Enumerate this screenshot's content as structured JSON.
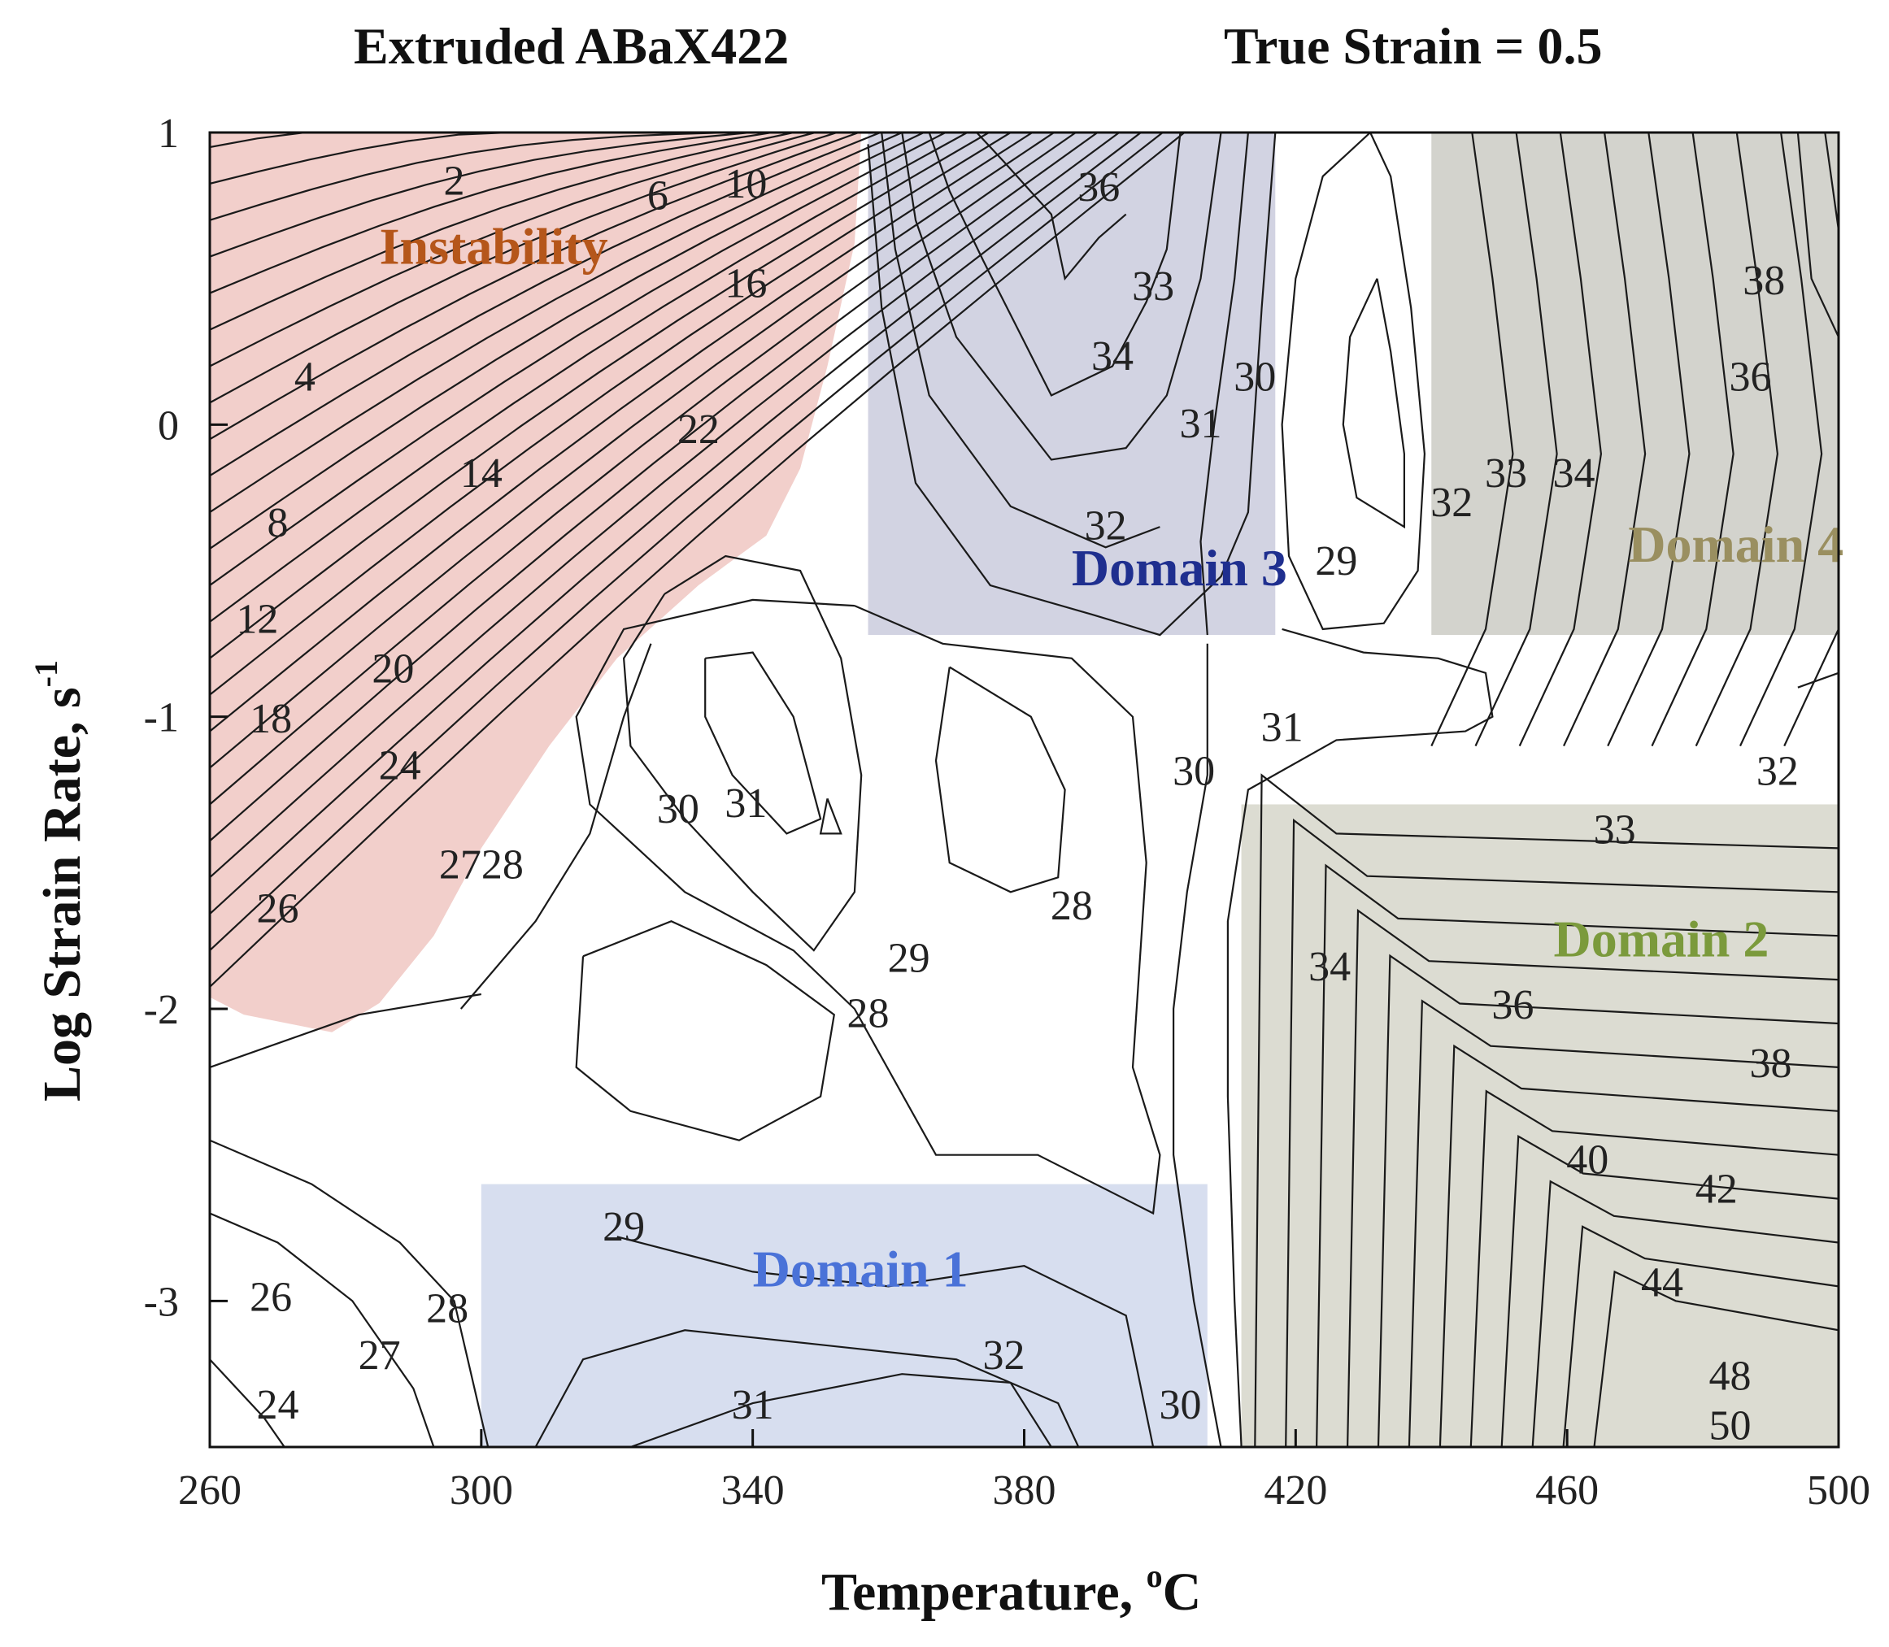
{
  "chart_data": {
    "type": "contour",
    "title": "Extruded ABaX422",
    "subtitle": "True Strain = 0.5",
    "xlabel": "Temperature, °C",
    "xlabel_main": "Temperature, ",
    "xlabel_sup": "o",
    "xlabel_unit": "C",
    "ylabel": "Log Strain Rate, s-1",
    "ylabel_main": "Log Strain Rate, s",
    "ylabel_sup": "-1",
    "xlim": [
      260,
      500
    ],
    "ylim": [
      -3.5,
      1
    ],
    "xticks": [
      260,
      300,
      340,
      380,
      420,
      460,
      500
    ],
    "yticks": [
      1,
      0,
      -1,
      -2,
      -3
    ],
    "xtick_labels": [
      "260",
      "300",
      "340",
      "380",
      "420",
      "460",
      "500"
    ],
    "ytick_labels": [
      "1",
      "0",
      "-1",
      "-2",
      "-3"
    ],
    "regions": [
      {
        "name": "Instability",
        "color": "#f2cfcb",
        "label_color": "#b5561a",
        "label_at": [
          285,
          0.55
        ]
      },
      {
        "name": "Domain 1",
        "color": "#d7deef",
        "label_color": "#4a72d8",
        "x": [
          300,
          407
        ],
        "y": [
          -3.5,
          -2.6
        ],
        "label_at": [
          340,
          -2.95
        ]
      },
      {
        "name": "Domain 2",
        "color": "#dcdcd2",
        "label_color": "#7b9a3c",
        "x": [
          412,
          500
        ],
        "y": [
          -3.5,
          -1.3
        ],
        "label_at": [
          458,
          -1.82
        ]
      },
      {
        "name": "Domain 3",
        "color": "#d2d3e2",
        "label_color": "#1f2f8f",
        "x": [
          357,
          417
        ],
        "y": [
          -0.72,
          1
        ],
        "label_at": [
          387,
          -0.55
        ]
      },
      {
        "name": "Domain 4",
        "color": "#d3d3cd",
        "label_color": "#9a8f60",
        "x": [
          440,
          500
        ],
        "y": [
          -0.72,
          1
        ],
        "label_at": [
          469,
          -0.47
        ]
      }
    ],
    "contour_labels": [
      {
        "text": "2",
        "x": 296,
        "y": 0.82
      },
      {
        "text": "6",
        "x": 326,
        "y": 0.77
      },
      {
        "text": "10",
        "x": 339,
        "y": 0.81
      },
      {
        "text": "16",
        "x": 339,
        "y": 0.47
      },
      {
        "text": "4",
        "x": 274,
        "y": 0.15
      },
      {
        "text": "22",
        "x": 332,
        "y": -0.03
      },
      {
        "text": "14",
        "x": 300,
        "y": -0.18
      },
      {
        "text": "8",
        "x": 270,
        "y": -0.35
      },
      {
        "text": "12",
        "x": 267,
        "y": -0.68
      },
      {
        "text": "20",
        "x": 287,
        "y": -0.85
      },
      {
        "text": "18",
        "x": 269,
        "y": -1.02
      },
      {
        "text": "24",
        "x": 288,
        "y": -1.18
      },
      {
        "text": "2728",
        "x": 300,
        "y": -1.52
      },
      {
        "text": "26",
        "x": 270,
        "y": -1.67
      },
      {
        "text": "36",
        "x": 391,
        "y": 0.8
      },
      {
        "text": "33",
        "x": 399,
        "y": 0.46
      },
      {
        "text": "34",
        "x": 393,
        "y": 0.22
      },
      {
        "text": "30",
        "x": 414,
        "y": 0.15
      },
      {
        "text": "31",
        "x": 406,
        "y": -0.01
      },
      {
        "text": "32",
        "x": 392,
        "y": -0.36
      },
      {
        "text": "29",
        "x": 426,
        "y": -0.48
      },
      {
        "text": "38",
        "x": 489,
        "y": 0.48
      },
      {
        "text": "36",
        "x": 487,
        "y": 0.15
      },
      {
        "text": "33",
        "x": 451,
        "y": -0.18
      },
      {
        "text": "34",
        "x": 461,
        "y": -0.18
      },
      {
        "text": "32",
        "x": 443,
        "y": -0.28
      },
      {
        "text": "31",
        "x": 418,
        "y": -1.05
      },
      {
        "text": "30",
        "x": 405,
        "y": -1.2
      },
      {
        "text": "30",
        "x": 329,
        "y": -1.33
      },
      {
        "text": "31",
        "x": 339,
        "y": -1.31
      },
      {
        "text": "28",
        "x": 387,
        "y": -1.66
      },
      {
        "text": "29",
        "x": 363,
        "y": -1.84
      },
      {
        "text": "28",
        "x": 357,
        "y": -2.03
      },
      {
        "text": "32",
        "x": 491,
        "y": -1.2
      },
      {
        "text": "33",
        "x": 467,
        "y": -1.4
      },
      {
        "text": "34",
        "x": 425,
        "y": -1.87
      },
      {
        "text": "36",
        "x": 452,
        "y": -2.0
      },
      {
        "text": "38",
        "x": 490,
        "y": -2.2
      },
      {
        "text": "40",
        "x": 463,
        "y": -2.53
      },
      {
        "text": "42",
        "x": 482,
        "y": -2.63
      },
      {
        "text": "44",
        "x": 474,
        "y": -2.95
      },
      {
        "text": "48",
        "x": 484,
        "y": -3.27
      },
      {
        "text": "50",
        "x": 484,
        "y": -3.44
      },
      {
        "text": "29",
        "x": 321,
        "y": -2.76
      },
      {
        "text": "26",
        "x": 269,
        "y": -3.0
      },
      {
        "text": "28",
        "x": 295,
        "y": -3.04
      },
      {
        "text": "27",
        "x": 285,
        "y": -3.2
      },
      {
        "text": "24",
        "x": 270,
        "y": -3.37
      },
      {
        "text": "31",
        "x": 340,
        "y": -3.37
      },
      {
        "text": "32",
        "x": 377,
        "y": -3.2
      },
      {
        "text": "30",
        "x": 403,
        "y": -3.37
      }
    ]
  }
}
